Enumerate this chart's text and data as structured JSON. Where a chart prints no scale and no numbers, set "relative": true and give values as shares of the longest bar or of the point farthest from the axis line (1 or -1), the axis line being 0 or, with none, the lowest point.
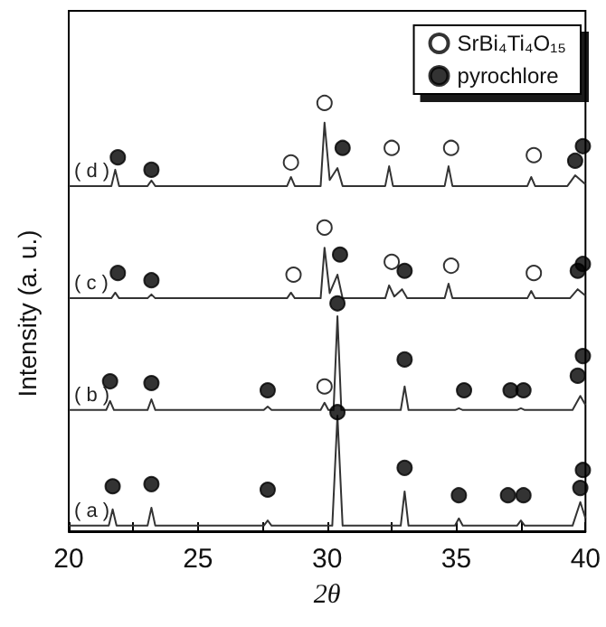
{
  "chart_data": {
    "type": "line",
    "relative": true,
    "xlabel": "2θ",
    "ylabel": "Intensity (a. u.)",
    "xlim": [
      20,
      40
    ],
    "xticks": [
      20,
      {
        "value": 22.5,
        "label": null
      },
      25,
      {
        "value": 27.5,
        "label": null
      },
      30,
      {
        "value": 32.5,
        "label": null
      },
      35,
      {
        "value": 37.5,
        "label": null
      },
      40
    ],
    "grid": false,
    "legend": "top right",
    "series": [
      {
        "name": "( a )",
        "color": "#333333",
        "marker": "none",
        "x": [
          20,
          21.55,
          21.7,
          21.85,
          23.05,
          23.2,
          23.35,
          27.55,
          27.7,
          27.85,
          30.2,
          30.4,
          30.6,
          32.85,
          33.0,
          33.15,
          34.95,
          35.1,
          35.25,
          37.35,
          37.5,
          37.65,
          39.5,
          39.8,
          40
        ],
        "values": [
          0.013,
          0.013,
          0.051,
          0.013,
          0.013,
          0.055,
          0.013,
          0.013,
          0.025,
          0.013,
          0.013,
          0.27,
          0.013,
          0.013,
          0.093,
          0.013,
          0.013,
          0.03,
          0.013,
          0.013,
          0.025,
          0.013,
          0.013,
          0.068,
          0.03
        ]
      },
      {
        "name": "( b )",
        "color": "#333333",
        "marker": "none",
        "x": [
          20,
          21.45,
          21.6,
          21.75,
          23.05,
          23.2,
          23.35,
          27.55,
          27.7,
          27.85,
          29.75,
          29.9,
          30.05,
          30.25,
          30.4,
          30.55,
          32.85,
          33.0,
          33.15,
          34.95,
          35.1,
          35.25,
          37.35,
          37.5,
          37.65,
          39.5,
          39.8,
          40
        ],
        "values": [
          0.283,
          0.283,
          0.304,
          0.283,
          0.283,
          0.308,
          0.283,
          0.283,
          0.291,
          0.283,
          0.283,
          0.3,
          0.283,
          0.283,
          0.502,
          0.283,
          0.283,
          0.338,
          0.283,
          0.283,
          0.287,
          0.283,
          0.283,
          0.287,
          0.283,
          0.283,
          0.316,
          0.295
        ]
      },
      {
        "name": "( c )",
        "color": "#333333",
        "marker": "none",
        "x": [
          20,
          21.65,
          21.8,
          21.95,
          23.05,
          23.2,
          23.35,
          28.45,
          28.6,
          28.75,
          29.75,
          29.9,
          30.1,
          30.4,
          30.6,
          32.25,
          32.4,
          32.6,
          32.9,
          33.1,
          34.55,
          34.7,
          34.85,
          37.75,
          37.9,
          38.05,
          39.4,
          39.7,
          40
        ],
        "values": [
          0.544,
          0.544,
          0.557,
          0.544,
          0.544,
          0.553,
          0.544,
          0.544,
          0.557,
          0.544,
          0.544,
          0.662,
          0.556,
          0.599,
          0.544,
          0.544,
          0.574,
          0.548,
          0.565,
          0.544,
          0.544,
          0.578,
          0.544,
          0.544,
          0.561,
          0.544,
          0.544,
          0.565,
          0.55
        ]
      },
      {
        "name": "( d )",
        "color": "#333333",
        "marker": "none",
        "x": [
          20,
          21.65,
          21.8,
          21.95,
          23.05,
          23.2,
          23.35,
          28.45,
          28.6,
          28.75,
          29.75,
          29.9,
          30.1,
          30.4,
          30.6,
          32.25,
          32.4,
          32.55,
          34.55,
          34.7,
          34.85,
          37.75,
          37.9,
          38.05,
          39.3,
          39.6,
          40
        ],
        "values": [
          0.806,
          0.806,
          0.844,
          0.806,
          0.806,
          0.819,
          0.806,
          0.806,
          0.827,
          0.806,
          0.806,
          0.954,
          0.82,
          0.848,
          0.806,
          0.806,
          0.852,
          0.806,
          0.806,
          0.852,
          0.806,
          0.806,
          0.827,
          0.806,
          0.806,
          0.831,
          0.81
        ]
      },
      {
        "name": "SrBi₄Ti₄O₁₅",
        "type": "scatter",
        "color": "#ffffff",
        "marker": "circle",
        "x": [
          28.6,
          29.9,
          32.5,
          34.8,
          38.0,
          29.9,
          28.7,
          32.5,
          34.8,
          38.0,
          29.9
        ],
        "values": [
          0.861,
          1.0,
          0.895,
          0.895,
          0.878,
          0.709,
          0.599,
          0.629,
          0.62,
          0.603,
          0.338
        ]
      },
      {
        "name": "pyrochlore",
        "type": "scatter",
        "color": "#000000",
        "marker": "circle",
        "x": [
          21.9,
          23.2,
          30.6,
          39.6,
          39.9,
          21.9,
          23.2,
          30.5,
          33.0,
          39.7,
          39.9,
          30.4,
          21.6,
          23.2,
          27.7,
          33.0,
          35.3,
          37.1,
          37.6,
          39.7,
          39.9,
          30.4,
          21.7,
          23.2,
          27.7,
          33.0,
          35.1,
          37.0,
          37.6,
          39.8,
          39.9
        ],
        "values": [
          0.873,
          0.844,
          0.895,
          0.865,
          0.899,
          0.603,
          0.586,
          0.646,
          0.608,
          0.608,
          0.624,
          0.532,
          0.35,
          0.346,
          0.329,
          0.401,
          0.329,
          0.329,
          0.329,
          0.363,
          0.409,
          0.278,
          0.105,
          0.11,
          0.097,
          0.148,
          0.084,
          0.084,
          0.084,
          0.101,
          0.143
        ]
      }
    ]
  }
}
